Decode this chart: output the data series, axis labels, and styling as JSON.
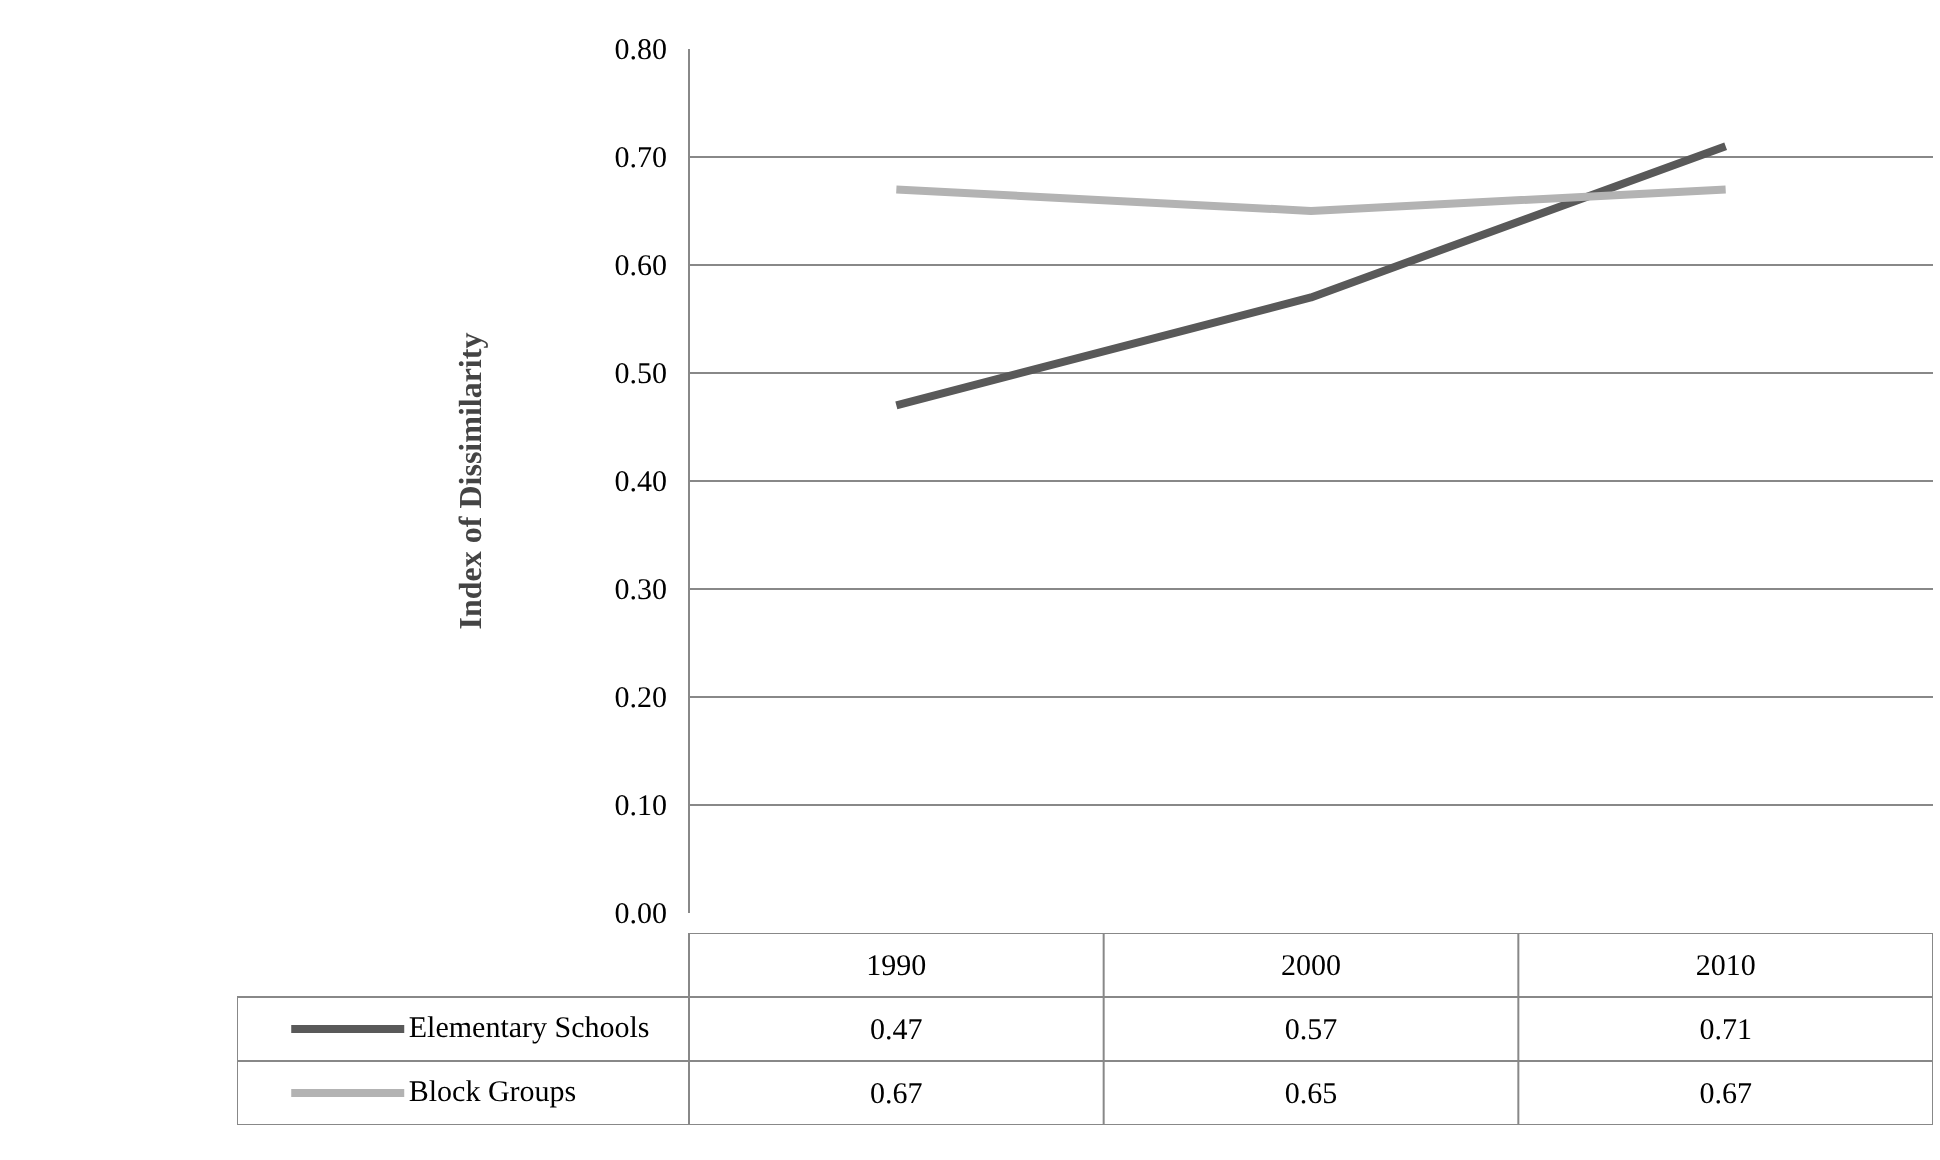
{
  "chart_data": {
    "type": "line",
    "ylabel": "Index of Dissimilarity",
    "categories": [
      "1990",
      "2000",
      "2010"
    ],
    "series": [
      {
        "name": "Elementary Schools",
        "color": "#595959",
        "values": [
          0.47,
          0.57,
          0.71
        ],
        "value_labels": [
          "0.47",
          "0.57",
          "0.71"
        ]
      },
      {
        "name": "Block Groups",
        "color": "#b3b3b3",
        "values": [
          0.67,
          0.65,
          0.67
        ],
        "value_labels": [
          "0.67",
          "0.65",
          "0.67"
        ]
      }
    ],
    "ylim": [
      0,
      0.8
    ],
    "yticks": [
      {
        "value": 0,
        "label": "0.00"
      },
      {
        "value": 0.1,
        "label": "0.10"
      },
      {
        "value": 0.2,
        "label": "0.20"
      },
      {
        "value": 0.3,
        "label": "0.30"
      },
      {
        "value": 0.4,
        "label": "0.40"
      },
      {
        "value": 0.5,
        "label": "0.50"
      },
      {
        "value": 0.6,
        "label": "0.60"
      },
      {
        "value": 0.7,
        "label": "0.70"
      },
      {
        "value": 0.8,
        "label": "0.80"
      }
    ],
    "grid": "y",
    "legend": "bottom",
    "marker": "none",
    "line_style": "solid"
  }
}
